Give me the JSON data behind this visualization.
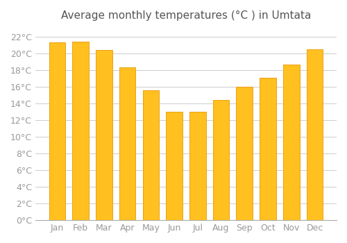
{
  "title": "Average monthly temperatures (°C ) in Umtata",
  "months": [
    "Jan",
    "Feb",
    "Mar",
    "Apr",
    "May",
    "Jun",
    "Jul",
    "Aug",
    "Sep",
    "Oct",
    "Nov",
    "Dec"
  ],
  "temps": [
    21.3,
    21.4,
    20.4,
    18.3,
    15.6,
    13.0,
    13.0,
    14.4,
    16.0,
    17.1,
    18.7,
    20.5
  ],
  "bar_color_top": "#FFA500",
  "bar_color_bottom": "#FFD580",
  "ylim": [
    0,
    23
  ],
  "yticks": [
    0,
    2,
    4,
    6,
    8,
    10,
    12,
    14,
    16,
    18,
    20,
    22
  ],
  "background_color": "#FFFFFF",
  "grid_color": "#CCCCCC",
  "title_fontsize": 11,
  "tick_fontsize": 9,
  "bar_edge_color": "#E8960A"
}
